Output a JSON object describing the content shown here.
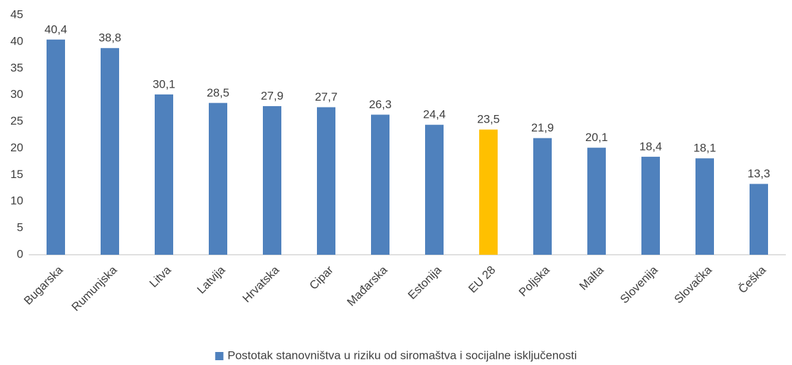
{
  "chart_data": {
    "type": "bar",
    "categories": [
      "Bugarska",
      "Rumunjska",
      "Litva",
      "Latvija",
      "Hrvatska",
      "Cipar",
      "Mađarska",
      "Estonija",
      "EU 28",
      "Poljska",
      "Malta",
      "Slovenija",
      "Slovačka",
      "Češka"
    ],
    "series": [
      {
        "name": "Postotak stanovništva u riziku od siromaštva i socijalne isključenosti",
        "color": "#4f81bd",
        "colors": [
          "#4f81bd",
          "#4f81bd",
          "#4f81bd",
          "#4f81bd",
          "#4f81bd",
          "#4f81bd",
          "#4f81bd",
          "#4f81bd",
          "#ffc000",
          "#4f81bd",
          "#4f81bd",
          "#4f81bd",
          "#4f81bd",
          "#4f81bd"
        ],
        "values": [
          40.4,
          38.8,
          30.1,
          28.5,
          27.9,
          27.7,
          26.3,
          24.4,
          23.5,
          21.9,
          20.1,
          18.4,
          18.1,
          13.3
        ],
        "value_labels": [
          "40,4",
          "38,8",
          "30,1",
          "28,5",
          "27,9",
          "27,7",
          "26,3",
          "24,4",
          "23,5",
          "21,9",
          "20,1",
          "18,4",
          "18,1",
          "13,3"
        ]
      }
    ],
    "ylim": [
      0,
      45
    ],
    "yticks": [
      0,
      5,
      10,
      15,
      20,
      25,
      30,
      35,
      40,
      45
    ],
    "grid": false,
    "legend": "bottom"
  }
}
